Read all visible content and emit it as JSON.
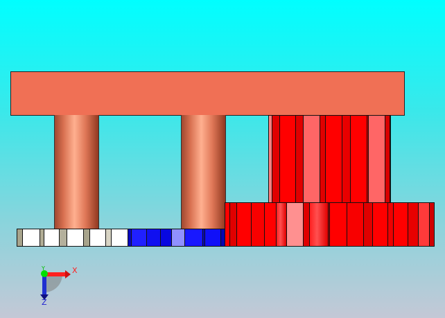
{
  "viewport": {
    "background_top": "#00ffff",
    "background_bottom": "#c4c8d6",
    "model": {
      "top_slab_color": "#f07055",
      "column_color": "#e07858",
      "left_base_colors": [
        "#a8a48c",
        "#ffffff",
        "#2020ff"
      ],
      "right_block_colors": [
        "#ff0000",
        "#e00000",
        "#ff6666"
      ]
    },
    "triad": {
      "x_label": "X",
      "y_label": "Y",
      "z_label": "Z",
      "x_color": "#ff2020",
      "y_color": "#00e000",
      "z_color": "#2020d0"
    }
  }
}
